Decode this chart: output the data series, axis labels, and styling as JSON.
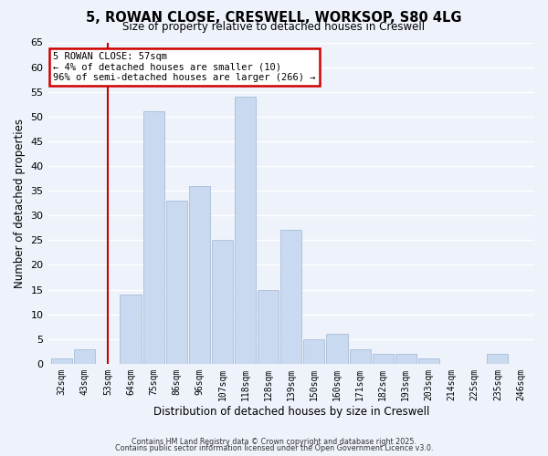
{
  "title_line1": "5, ROWAN CLOSE, CRESWELL, WORKSOP, S80 4LG",
  "title_line2": "Size of property relative to detached houses in Creswell",
  "categories": [
    "32sqm",
    "43sqm",
    "53sqm",
    "64sqm",
    "75sqm",
    "86sqm",
    "96sqm",
    "107sqm",
    "118sqm",
    "128sqm",
    "139sqm",
    "150sqm",
    "160sqm",
    "171sqm",
    "182sqm",
    "193sqm",
    "203sqm",
    "214sqm",
    "225sqm",
    "235sqm",
    "246sqm"
  ],
  "values": [
    1,
    3,
    0,
    14,
    51,
    33,
    36,
    25,
    54,
    15,
    27,
    5,
    6,
    3,
    2,
    2,
    1,
    0,
    0,
    2,
    0
  ],
  "bar_color": "#c8d9f0",
  "bar_edge_color": "#aabcd8",
  "background_color": "#eef2fb",
  "grid_color": "#ffffff",
  "xlabel": "Distribution of detached houses by size in Creswell",
  "ylabel": "Number of detached properties",
  "ylim": [
    0,
    65
  ],
  "yticks": [
    0,
    5,
    10,
    15,
    20,
    25,
    30,
    35,
    40,
    45,
    50,
    55,
    60,
    65
  ],
  "vline_x_index": 2,
  "vline_color": "#cc0000",
  "annotation_title": "5 ROWAN CLOSE: 57sqm",
  "annotation_line1": "← 4% of detached houses are smaller (10)",
  "annotation_line2": "96% of semi-detached houses are larger (266) →",
  "annotation_box_color": "#ffffff",
  "annotation_box_edge": "#cc0000",
  "footer_line1": "Contains HM Land Registry data © Crown copyright and database right 2025.",
  "footer_line2": "Contains public sector information licensed under the Open Government Licence v3.0."
}
